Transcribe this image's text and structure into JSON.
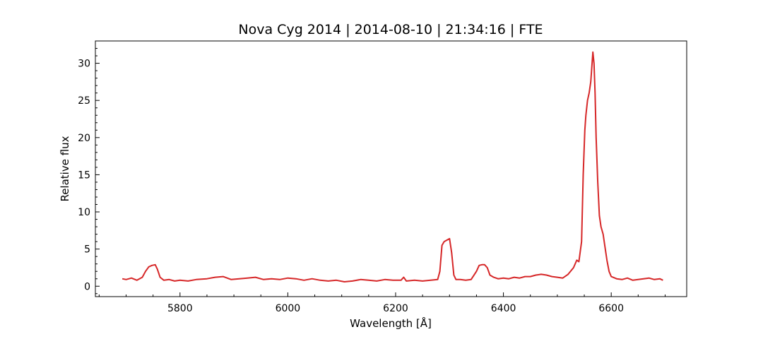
{
  "chart_data": {
    "type": "line",
    "title": "Nova Cyg 2014 | 2014-08-10 | 21:34:16 | FTE",
    "xlabel": "Wavelength [Å]",
    "ylabel": "Relative flux",
    "xlim": [
      5643,
      6740
    ],
    "ylim": [
      -1.4,
      33.0
    ],
    "xticks": [
      5800,
      6000,
      6200,
      6400,
      6600
    ],
    "yticks": [
      0,
      5,
      10,
      15,
      20,
      25,
      30
    ],
    "xtick_labels": [
      "5800",
      "6000",
      "6200",
      "6400",
      "6600"
    ],
    "ytick_labels": [
      "0",
      "5",
      "10",
      "15",
      "20",
      "25",
      "30"
    ],
    "grid": false,
    "tick_direction": "in",
    "minor_ticks": true,
    "series": [
      {
        "color": "#d62728",
        "x": [
          5693,
          5700,
          5710,
          5720,
          5730,
          5736,
          5742,
          5748,
          5754,
          5758,
          5763,
          5770,
          5780,
          5790,
          5800,
          5815,
          5830,
          5850,
          5865,
          5880,
          5895,
          5910,
          5925,
          5940,
          5955,
          5970,
          5985,
          6000,
          6015,
          6030,
          6045,
          6060,
          6075,
          6090,
          6105,
          6120,
          6135,
          6150,
          6165,
          6180,
          6195,
          6210,
          6215,
          6220,
          6235,
          6250,
          6265,
          6278,
          6282,
          6286,
          6290,
          6295,
          6300,
          6304,
          6308,
          6312,
          6320,
          6330,
          6340,
          6350,
          6355,
          6360,
          6365,
          6370,
          6375,
          6382,
          6390,
          6400,
          6410,
          6420,
          6430,
          6440,
          6450,
          6460,
          6470,
          6480,
          6490,
          6500,
          6510,
          6520,
          6530,
          6536,
          6540,
          6545,
          6548,
          6551,
          6553,
          6556,
          6559,
          6562,
          6564,
          6566,
          6568,
          6570,
          6572,
          6575,
          6578,
          6581,
          6585,
          6588,
          6592,
          6596,
          6600,
          6610,
          6620,
          6630,
          6640,
          6650,
          6660,
          6670,
          6680,
          6690,
          6696
        ],
        "y": [
          1.0,
          0.9,
          1.1,
          0.8,
          1.2,
          2.0,
          2.6,
          2.8,
          2.9,
          2.3,
          1.2,
          0.8,
          0.9,
          0.7,
          0.8,
          0.7,
          0.9,
          1.0,
          1.2,
          1.3,
          0.9,
          1.0,
          1.1,
          1.2,
          0.9,
          1.0,
          0.9,
          1.1,
          1.0,
          0.8,
          1.0,
          0.8,
          0.7,
          0.8,
          0.6,
          0.7,
          0.9,
          0.8,
          0.7,
          0.9,
          0.8,
          0.8,
          1.2,
          0.7,
          0.8,
          0.7,
          0.8,
          0.9,
          2.0,
          5.5,
          6.0,
          6.2,
          6.4,
          4.5,
          1.5,
          0.9,
          0.9,
          0.8,
          0.9,
          2.0,
          2.8,
          2.9,
          2.9,
          2.5,
          1.5,
          1.2,
          1.0,
          1.1,
          1.0,
          1.2,
          1.1,
          1.3,
          1.3,
          1.5,
          1.6,
          1.5,
          1.3,
          1.2,
          1.1,
          1.6,
          2.5,
          3.5,
          3.3,
          6.0,
          15.0,
          21.0,
          23.0,
          25.0,
          26.0,
          27.5,
          29.5,
          31.5,
          30.0,
          26.0,
          20.0,
          14.0,
          9.5,
          8.0,
          7.0,
          5.5,
          3.5,
          2.0,
          1.3,
          1.0,
          0.9,
          1.1,
          0.8,
          0.9,
          1.0,
          1.1,
          0.9,
          1.0,
          0.8
        ]
      }
    ]
  }
}
